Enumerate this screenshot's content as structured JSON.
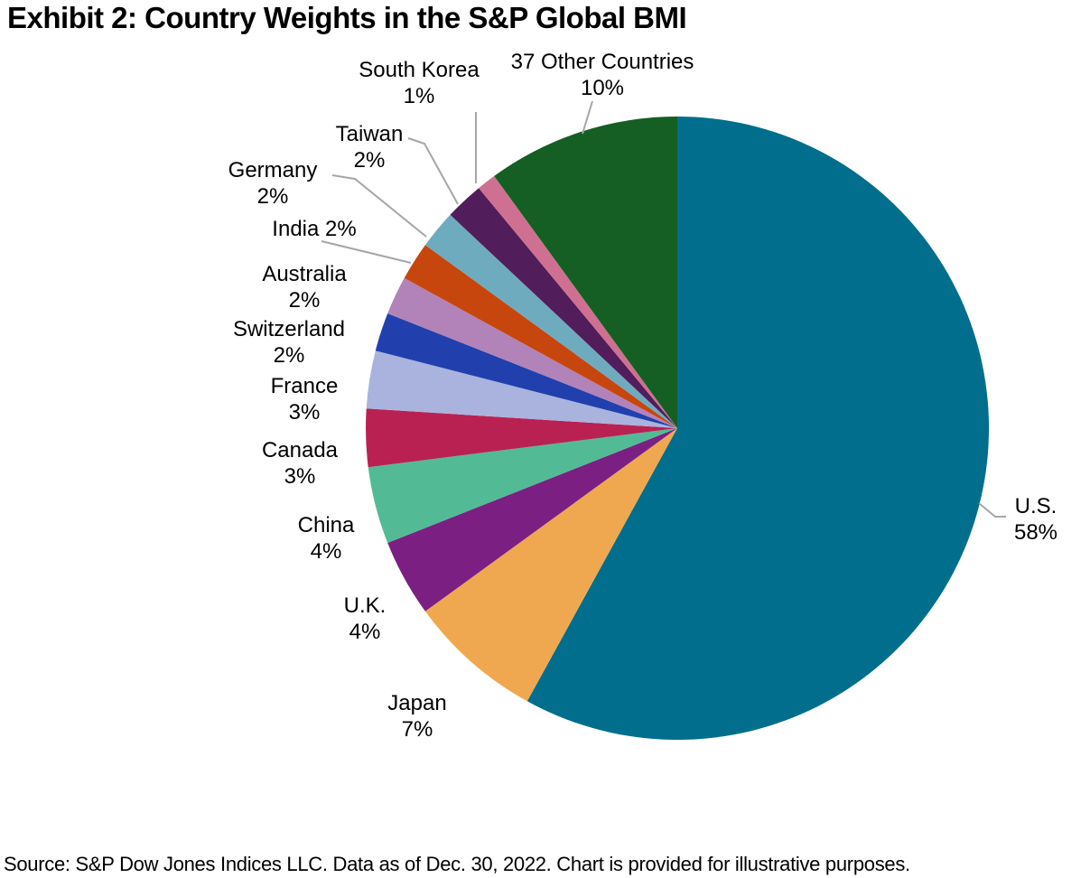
{
  "title": "Exhibit 2: Country Weights in the S&P Global BMI",
  "source_note": "Source: S&P Dow Jones Indices LLC. Data as of Dec. 30, 2022. Chart is provided for illustrative purposes.",
  "chart_data": {
    "type": "pie",
    "title": "Exhibit 2: Country Weights in the S&P Global BMI",
    "value_unit": "%",
    "total": 100,
    "start_angle_deg": 0,
    "direction": "clockwise",
    "legend_position": "none",
    "labels_around_pie": true,
    "leader_line_color": "#A6A6A6",
    "label_color": "#000000",
    "slices": [
      {
        "label": "U.S.",
        "value": 58,
        "display": "58%",
        "color": "#006E8C"
      },
      {
        "label": "Japan",
        "value": 7,
        "display": "7%",
        "color": "#F0A850"
      },
      {
        "label": "U.K.",
        "value": 4,
        "display": "4%",
        "color": "#7B2082"
      },
      {
        "label": "China",
        "value": 4,
        "display": "4%",
        "color": "#52BB96"
      },
      {
        "label": "Canada",
        "value": 3,
        "display": "3%",
        "color": "#BA2153"
      },
      {
        "label": "France",
        "value": 3,
        "display": "3%",
        "color": "#A9B3DD"
      },
      {
        "label": "Switzerland",
        "value": 2,
        "display": "2%",
        "color": "#2140AE"
      },
      {
        "label": "Australia",
        "value": 2,
        "display": "2%",
        "color": "#B183B9"
      },
      {
        "label": "India",
        "value": 2,
        "display": "2%",
        "color": "#C7460D"
      },
      {
        "label": "Germany",
        "value": 2,
        "display": "2%",
        "color": "#6FABBE"
      },
      {
        "label": "Taiwan",
        "value": 2,
        "display": "2%",
        "color": "#511D5B"
      },
      {
        "label": "South Korea",
        "value": 1,
        "display": "1%",
        "color": "#CF7092"
      },
      {
        "label": "37 Other Countries",
        "value": 10,
        "display": "10%",
        "color": "#155F24"
      }
    ]
  }
}
